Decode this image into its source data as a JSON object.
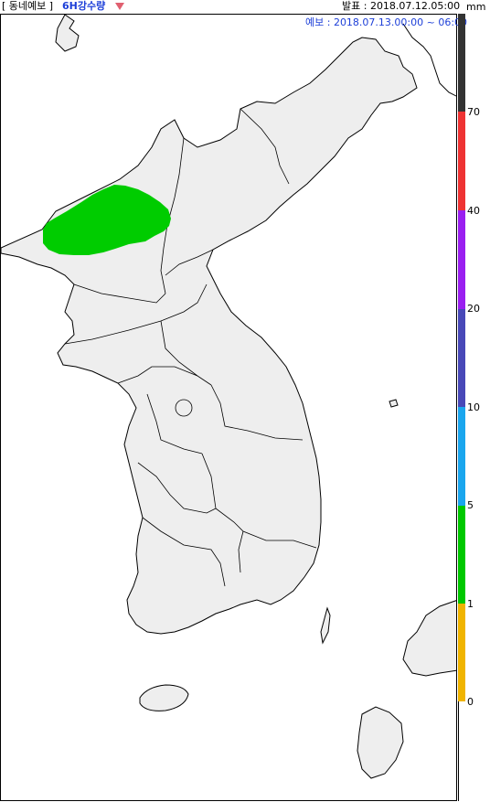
{
  "header": {
    "product_group": "[ 동네예보 ]",
    "product_name": "6H강수량",
    "issue_time": "발표 : 2018.07.12.05:00",
    "forecast_time": "예보 : 2018.07.13.00:00 ~ 06:00",
    "unit": "mm"
  },
  "legend": {
    "ticks": [
      "70",
      "40",
      "20",
      "10",
      "5",
      "1",
      "0"
    ],
    "colors": {
      "above_70": "#333333",
      "40_70": "#ee3333",
      "20_40": "#9a1ff0",
      "10_20": "#4848b8",
      "5_10": "#1aa6ee",
      "1_5": "#00c800",
      "0_1": "#f0b400",
      "zero": "#ffffff"
    }
  },
  "map": {
    "land_color": "#eeeeee",
    "rain_area_color": "#00cc00",
    "rain_area_category": "1-5 mm"
  }
}
